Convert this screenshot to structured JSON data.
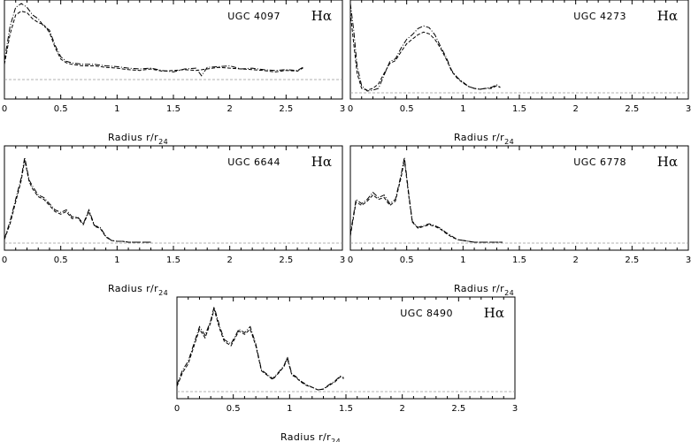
{
  "chart_data": [
    {
      "type": "line",
      "galaxy": "UGC 4097",
      "band": "Hα",
      "xlabel_main": "Radius  r/r",
      "xlabel_sub": "24",
      "xlim": [
        0,
        3
      ],
      "xticks": [
        "0",
        "0.5",
        "1",
        "1.5",
        "2",
        "2.5",
        "3"
      ],
      "series": [
        {
          "style": "dashdot",
          "x": [
            0,
            0.05,
            0.1,
            0.15,
            0.2,
            0.25,
            0.3,
            0.35,
            0.4,
            0.45,
            0.5,
            0.55,
            0.6,
            0.7,
            0.8,
            0.9,
            1.0,
            1.1,
            1.2,
            1.3,
            1.4,
            1.5,
            1.6,
            1.7,
            1.75,
            1.8,
            1.9,
            2.0,
            2.1,
            2.2,
            2.3,
            2.4,
            2.5,
            2.6,
            2.65
          ],
          "y": [
            0.25,
            0.7,
            0.95,
            1.0,
            0.95,
            0.85,
            0.8,
            0.7,
            0.65,
            0.45,
            0.3,
            0.24,
            0.22,
            0.2,
            0.2,
            0.18,
            0.17,
            0.15,
            0.14,
            0.15,
            0.12,
            0.1,
            0.14,
            0.15,
            0.05,
            0.16,
            0.17,
            0.18,
            0.14,
            0.15,
            0.13,
            0.12,
            0.13,
            0.12,
            0.16
          ]
        },
        {
          "style": "dash",
          "x": [
            0,
            0.05,
            0.1,
            0.15,
            0.2,
            0.25,
            0.3,
            0.35,
            0.4,
            0.45,
            0.5,
            0.55,
            0.6,
            0.7,
            0.8,
            0.9,
            1.0,
            1.1,
            1.2,
            1.3,
            1.4,
            1.5,
            1.6,
            1.7,
            1.8,
            1.9,
            2.0,
            2.1,
            2.2,
            2.3,
            2.4,
            2.5,
            2.6,
            2.65
          ],
          "y": [
            0.2,
            0.6,
            0.85,
            0.9,
            0.88,
            0.8,
            0.75,
            0.72,
            0.62,
            0.42,
            0.27,
            0.22,
            0.2,
            0.18,
            0.18,
            0.16,
            0.15,
            0.13,
            0.12,
            0.14,
            0.11,
            0.12,
            0.13,
            0.12,
            0.14,
            0.16,
            0.15,
            0.14,
            0.13,
            0.12,
            0.1,
            0.12,
            0.11,
            0.15
          ]
        }
      ]
    },
    {
      "type": "line",
      "galaxy": "UGC 4273",
      "band": "Hα",
      "xlabel_main": "Radius  r/r",
      "xlabel_sub": "24",
      "xlim": [
        0,
        3
      ],
      "xticks": [
        "0",
        "0.5",
        "1",
        "1.5",
        "2",
        "2.5",
        "3"
      ],
      "series": [
        {
          "style": "dashdot",
          "x": [
            0,
            0.03,
            0.06,
            0.1,
            0.15,
            0.2,
            0.25,
            0.3,
            0.35,
            0.4,
            0.45,
            0.5,
            0.55,
            0.6,
            0.65,
            0.7,
            0.75,
            0.8,
            0.85,
            0.9,
            0.95,
            1.0,
            1.05,
            1.1,
            1.15,
            1.2,
            1.25,
            1.3,
            1.33
          ],
          "y": [
            1.0,
            0.7,
            0.3,
            0.08,
            0.02,
            0.03,
            0.05,
            0.2,
            0.35,
            0.38,
            0.5,
            0.6,
            0.65,
            0.72,
            0.75,
            0.73,
            0.65,
            0.52,
            0.4,
            0.25,
            0.17,
            0.12,
            0.07,
            0.05,
            0.04,
            0.05,
            0.06,
            0.09,
            0.06
          ]
        },
        {
          "style": "dash",
          "x": [
            0,
            0.03,
            0.06,
            0.1,
            0.15,
            0.2,
            0.25,
            0.3,
            0.35,
            0.4,
            0.45,
            0.5,
            0.55,
            0.6,
            0.65,
            0.7,
            0.75,
            0.8,
            0.85,
            0.9,
            0.95,
            1.0,
            1.05,
            1.1,
            1.15,
            1.2,
            1.25,
            1.3,
            1.33
          ],
          "y": [
            0.9,
            0.55,
            0.22,
            0.05,
            0.03,
            0.05,
            0.1,
            0.22,
            0.33,
            0.36,
            0.46,
            0.55,
            0.6,
            0.65,
            0.68,
            0.66,
            0.6,
            0.5,
            0.38,
            0.24,
            0.16,
            0.11,
            0.07,
            0.05,
            0.04,
            0.05,
            0.05,
            0.08,
            0.06
          ]
        }
      ]
    },
    {
      "type": "line",
      "galaxy": "UGC 6644",
      "band": "Hα",
      "xlabel_main": "Radius  r/r",
      "xlabel_sub": "24",
      "xlim": [
        0,
        3
      ],
      "xticks": [
        "0",
        "0.5",
        "1",
        "1.5",
        "2",
        "2.5",
        "3"
      ],
      "series": [
        {
          "style": "dashdot",
          "x": [
            0,
            0.05,
            0.1,
            0.15,
            0.18,
            0.22,
            0.25,
            0.3,
            0.35,
            0.4,
            0.45,
            0.5,
            0.55,
            0.6,
            0.65,
            0.7,
            0.75,
            0.8,
            0.85,
            0.9,
            0.95,
            1.0,
            1.05,
            1.1,
            1.2,
            1.3
          ],
          "y": [
            0.05,
            0.25,
            0.5,
            0.75,
            0.98,
            0.72,
            0.65,
            0.55,
            0.52,
            0.45,
            0.38,
            0.35,
            0.38,
            0.3,
            0.3,
            0.22,
            0.38,
            0.2,
            0.18,
            0.08,
            0.03,
            0.02,
            0.02,
            0.01,
            0.01,
            0.01
          ]
        },
        {
          "style": "dash",
          "x": [
            0,
            0.05,
            0.1,
            0.15,
            0.18,
            0.22,
            0.25,
            0.3,
            0.35,
            0.4,
            0.45,
            0.5,
            0.55,
            0.6,
            0.65,
            0.7,
            0.75,
            0.8,
            0.85,
            0.9,
            0.95,
            1.0,
            1.05,
            1.1,
            1.2,
            1.3
          ],
          "y": [
            0.04,
            0.22,
            0.47,
            0.72,
            0.95,
            0.7,
            0.62,
            0.53,
            0.5,
            0.43,
            0.36,
            0.33,
            0.36,
            0.28,
            0.29,
            0.21,
            0.36,
            0.19,
            0.17,
            0.07,
            0.03,
            0.02,
            0.02,
            0.01,
            0.01,
            0.01
          ]
        }
      ]
    },
    {
      "type": "line",
      "galaxy": "UGC 6778",
      "band": "Hα",
      "xlabel_main": "Radius  r/r",
      "xlabel_sub": "24",
      "xlim": [
        0,
        3
      ],
      "xticks": [
        "0",
        "0.5",
        "1",
        "1.5",
        "2",
        "2.5",
        "3"
      ],
      "series": [
        {
          "style": "dashdot",
          "x": [
            0,
            0.05,
            0.1,
            0.15,
            0.2,
            0.25,
            0.3,
            0.35,
            0.4,
            0.45,
            0.48,
            0.52,
            0.55,
            0.6,
            0.65,
            0.7,
            0.75,
            0.8,
            0.85,
            0.9,
            0.95,
            1.0,
            1.05,
            1.1,
            1.2,
            1.3,
            1.35
          ],
          "y": [
            0.1,
            0.5,
            0.45,
            0.5,
            0.58,
            0.52,
            0.55,
            0.45,
            0.5,
            0.78,
            0.98,
            0.55,
            0.25,
            0.18,
            0.2,
            0.22,
            0.2,
            0.17,
            0.12,
            0.08,
            0.04,
            0.03,
            0.02,
            0.01,
            0.01,
            0.01,
            0.01
          ]
        },
        {
          "style": "dash",
          "x": [
            0,
            0.05,
            0.1,
            0.15,
            0.2,
            0.25,
            0.3,
            0.35,
            0.4,
            0.45,
            0.48,
            0.52,
            0.55,
            0.6,
            0.65,
            0.7,
            0.75,
            0.8,
            0.85,
            0.9,
            0.95,
            1.0,
            1.05,
            1.1,
            1.2,
            1.3,
            1.35
          ],
          "y": [
            0.08,
            0.47,
            0.43,
            0.48,
            0.55,
            0.5,
            0.52,
            0.43,
            0.48,
            0.75,
            0.95,
            0.52,
            0.24,
            0.17,
            0.19,
            0.21,
            0.19,
            0.16,
            0.11,
            0.07,
            0.04,
            0.03,
            0.02,
            0.01,
            0.01,
            0.01,
            0.01
          ]
        }
      ]
    },
    {
      "type": "line",
      "galaxy": "UGC 8490",
      "band": "Hα",
      "xlabel_main": "Radius  r/r",
      "xlabel_sub": "24",
      "xlim": [
        0,
        3
      ],
      "xticks": [
        "0",
        "0.5",
        "1",
        "1.5",
        "2",
        "2.5",
        "3"
      ],
      "series": [
        {
          "style": "dashdot",
          "x": [
            0,
            0.05,
            0.1,
            0.15,
            0.2,
            0.25,
            0.3,
            0.33,
            0.38,
            0.42,
            0.48,
            0.55,
            0.6,
            0.65,
            0.7,
            0.75,
            0.8,
            0.85,
            0.9,
            0.95,
            0.98,
            1.02,
            1.05,
            1.1,
            1.15,
            1.2,
            1.25,
            1.3,
            1.35,
            1.4,
            1.45,
            1.48
          ],
          "y": [
            0.08,
            0.25,
            0.35,
            0.55,
            0.75,
            0.65,
            0.82,
            0.98,
            0.75,
            0.6,
            0.55,
            0.72,
            0.68,
            0.75,
            0.55,
            0.25,
            0.2,
            0.15,
            0.22,
            0.3,
            0.4,
            0.2,
            0.18,
            0.12,
            0.08,
            0.05,
            0.02,
            0.03,
            0.08,
            0.12,
            0.18,
            0.16
          ]
        },
        {
          "style": "dash",
          "x": [
            0,
            0.05,
            0.1,
            0.15,
            0.2,
            0.25,
            0.3,
            0.33,
            0.38,
            0.42,
            0.48,
            0.55,
            0.6,
            0.65,
            0.7,
            0.75,
            0.8,
            0.85,
            0.9,
            0.95,
            0.98,
            1.02,
            1.05,
            1.1,
            1.15,
            1.2,
            1.25,
            1.3,
            1.35,
            1.4,
            1.45,
            1.48
          ],
          "y": [
            0.06,
            0.22,
            0.32,
            0.52,
            0.72,
            0.62,
            0.8,
            0.95,
            0.72,
            0.58,
            0.53,
            0.7,
            0.66,
            0.72,
            0.53,
            0.24,
            0.19,
            0.14,
            0.21,
            0.29,
            0.38,
            0.19,
            0.17,
            0.11,
            0.07,
            0.05,
            0.02,
            0.03,
            0.07,
            0.11,
            0.17,
            0.15
          ]
        }
      ]
    }
  ]
}
